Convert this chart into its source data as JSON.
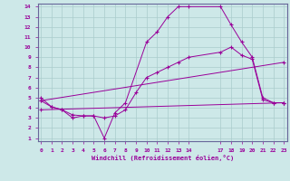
{
  "xlabel": "Windchill (Refroidissement éolien,°C)",
  "background_color": "#cde8e8",
  "line_color": "#990099",
  "grid_color": "#aacccc",
  "xlim": [
    0,
    23
  ],
  "ylim": [
    1,
    14
  ],
  "xticks": [
    0,
    1,
    2,
    3,
    4,
    5,
    6,
    7,
    8,
    9,
    10,
    11,
    12,
    13,
    14,
    17,
    18,
    19,
    20,
    21,
    22,
    23
  ],
  "yticks": [
    1,
    2,
    3,
    4,
    5,
    6,
    7,
    8,
    9,
    10,
    11,
    12,
    13,
    14
  ],
  "lines": [
    {
      "x": [
        0,
        1,
        2,
        3,
        4,
        5,
        6,
        7,
        8,
        10,
        11,
        12,
        13,
        14,
        17,
        18,
        19,
        20,
        21,
        22,
        23
      ],
      "y": [
        5,
        4.1,
        3.8,
        3.0,
        3.2,
        3.2,
        1.0,
        3.5,
        4.5,
        10.5,
        11.5,
        13.0,
        14.0,
        14.0,
        14.0,
        12.2,
        10.5,
        9.0,
        5.0,
        4.5,
        4.5
      ]
    },
    {
      "x": [
        0,
        1,
        2,
        3,
        4,
        5,
        6,
        7,
        8,
        9,
        10,
        11,
        12,
        13,
        14,
        17,
        18,
        19,
        20,
        21,
        22,
        23
      ],
      "y": [
        4.7,
        4.1,
        3.8,
        3.3,
        3.2,
        3.2,
        3.0,
        3.2,
        3.8,
        5.5,
        7.0,
        7.5,
        8.0,
        8.5,
        9.0,
        9.5,
        10.0,
        9.2,
        8.8,
        4.8,
        4.5,
        4.5
      ]
    },
    {
      "x": [
        0,
        23
      ],
      "y": [
        3.8,
        4.5
      ]
    },
    {
      "x": [
        0,
        23
      ],
      "y": [
        4.7,
        8.5
      ]
    }
  ]
}
